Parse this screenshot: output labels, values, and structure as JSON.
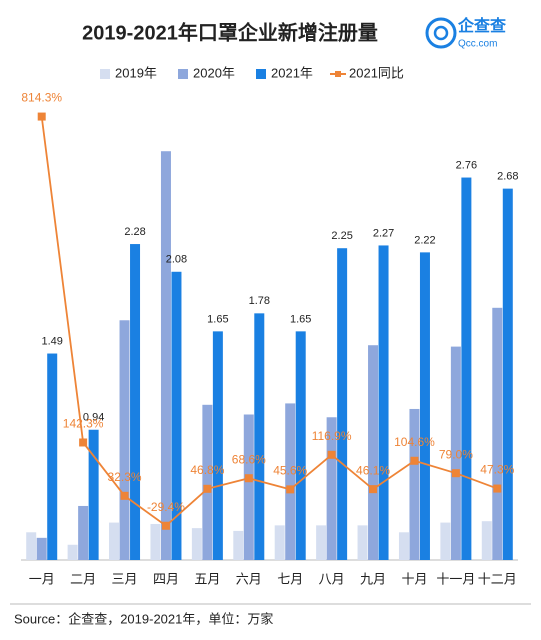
{
  "brand": {
    "name": "企查查",
    "site": "Qcc.com"
  },
  "source": "Source：企查查，2019-2021年，单位：万家",
  "chart_data": {
    "type": "bar-line",
    "title": "2019-2021年口罩企业新增注册量",
    "categories": [
      "一月",
      "二月",
      "三月",
      "四月",
      "五月",
      "六月",
      "七月",
      "八月",
      "九月",
      "十月",
      "十一月",
      "十二月"
    ],
    "ylim": [
      0,
      3.5
    ],
    "y2lim": [
      -100,
      900
    ],
    "legend": "top",
    "series": [
      {
        "name": "2019年",
        "type": "bar",
        "color": "#d5def0",
        "values": [
          0.2,
          0.11,
          0.27,
          0.26,
          0.23,
          0.21,
          0.25,
          0.25,
          0.25,
          0.2,
          0.27,
          0.28
        ]
      },
      {
        "name": "2020年",
        "type": "bar",
        "color": "#8ea7dc",
        "values": [
          0.16,
          0.39,
          1.73,
          2.95,
          1.12,
          1.05,
          1.13,
          1.03,
          1.55,
          1.09,
          1.54,
          1.82
        ]
      },
      {
        "name": "2021年",
        "type": "bar",
        "color": "#1a80e2",
        "values": [
          1.49,
          0.94,
          2.28,
          2.08,
          1.65,
          1.78,
          1.65,
          2.25,
          2.27,
          2.22,
          2.76,
          2.68
        ],
        "labels": true
      },
      {
        "name": "2021同比",
        "type": "line",
        "axis": "y2",
        "color": "#ee8437",
        "values": [
          814.3,
          142.3,
          32.3,
          -29.4,
          46.8,
          68.6,
          45.6,
          116.9,
          46.1,
          104.6,
          79.0,
          47.3
        ],
        "value_labels": [
          "814.3%",
          "142.3%",
          "32.3%",
          "-29.4%",
          "46.8%",
          "68.6%",
          "45.6%",
          "116.9%",
          "46.1%",
          "104.6%",
          "79.0%",
          "47.3%"
        ]
      }
    ]
  }
}
